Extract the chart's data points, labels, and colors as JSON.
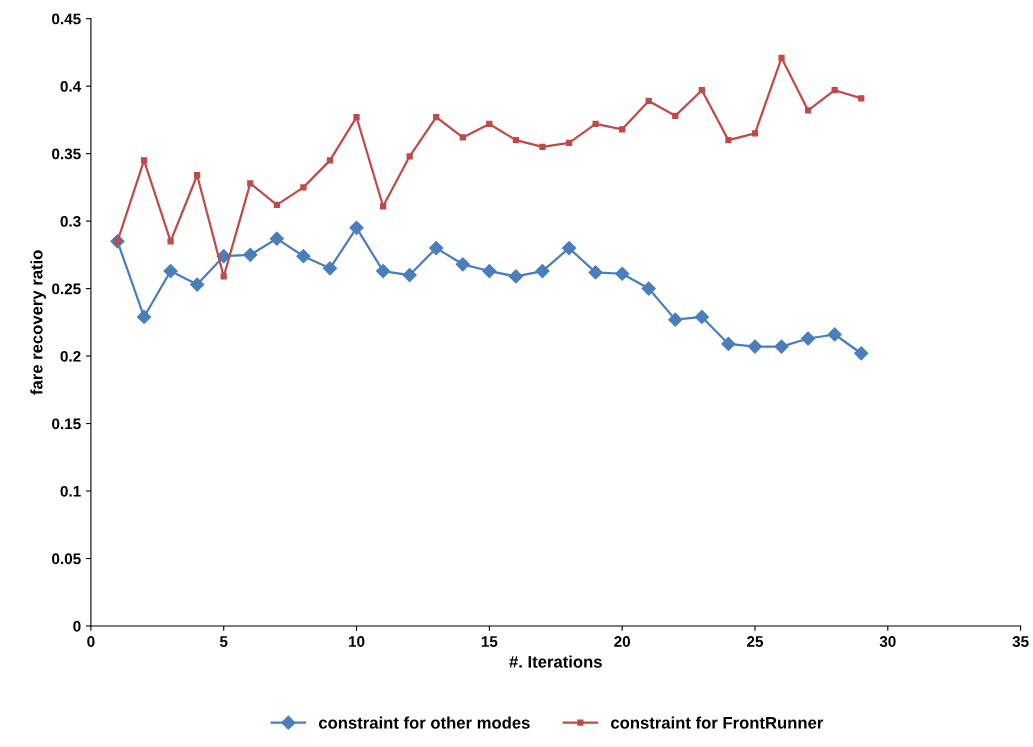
{
  "chart_data": {
    "type": "line",
    "xlabel": "#. Iterations",
    "ylabel": "fare recovery ratio",
    "x": [
      1,
      2,
      3,
      4,
      5,
      6,
      7,
      8,
      9,
      10,
      11,
      12,
      13,
      14,
      15,
      16,
      17,
      18,
      19,
      20,
      21,
      22,
      23,
      24,
      25,
      26,
      27,
      28,
      29
    ],
    "series": [
      {
        "name": "constraint for other modes",
        "color": "#4a7ebb",
        "marker": "diamond",
        "values": [
          0.285,
          0.229,
          0.263,
          0.253,
          0.274,
          0.275,
          0.287,
          0.274,
          0.265,
          0.295,
          0.263,
          0.26,
          0.28,
          0.268,
          0.263,
          0.259,
          0.263,
          0.28,
          0.262,
          0.261,
          0.25,
          0.227,
          0.229,
          0.209,
          0.207,
          0.207,
          0.213,
          0.216,
          0.202
        ]
      },
      {
        "name": "constraint for FrontRunner",
        "color": "#be4b48",
        "marker": "square",
        "values": [
          0.285,
          0.345,
          0.285,
          0.334,
          0.259,
          0.328,
          0.312,
          0.325,
          0.345,
          0.377,
          0.311,
          0.348,
          0.377,
          0.362,
          0.372,
          0.36,
          0.355,
          0.358,
          0.372,
          0.368,
          0.389,
          0.378,
          0.397,
          0.36,
          0.365,
          0.421,
          0.382,
          0.397,
          0.391
        ]
      }
    ],
    "xlim": [
      0,
      35
    ],
    "xticks": [
      0,
      5,
      10,
      15,
      20,
      25,
      30,
      35
    ],
    "ylim": [
      0,
      0.45
    ],
    "yticks": [
      0,
      0.05,
      0.1,
      0.15,
      0.2,
      0.25,
      0.3,
      0.35,
      0.4,
      0.45
    ],
    "grid": false,
    "legend": "bottom",
    "line_style": "solid"
  }
}
